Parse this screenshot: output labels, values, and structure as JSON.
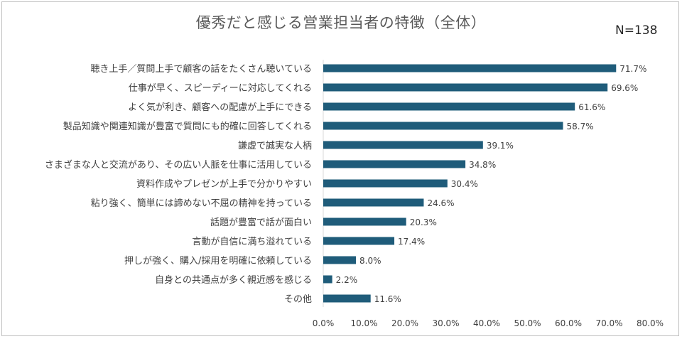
{
  "chart_data": {
    "type": "bar",
    "orientation": "horizontal",
    "title": "優秀だと感じる営業担当者の特徴（全体）",
    "note": "N=138",
    "categories": [
      "聴き上手／質問上手で顧客の話をたくさん聴いている",
      "仕事が早く、スピーディーに対応してくれる",
      "よく気が利き、顧客への配慮が上手にできる",
      "製品知識や関連知識が豊富で質問にも的確に回答してくれる",
      "謙虚で誠実な人柄",
      "さまざまな人と交流があり、その広い人脈を仕事に活用している",
      "資料作成やプレゼンが上手で分かりやすい",
      "粘り強く、簡単には諦めない不屈の精神を持っている",
      "話題が豊富で話が面白い",
      "言動が自信に満ち溢れている",
      "押しが強く、購入/採用を明確に依頼している",
      "自身との共通点が多く親近感を感じる",
      "その他"
    ],
    "values": [
      71.7,
      69.6,
      61.6,
      58.7,
      39.1,
      34.8,
      30.4,
      24.6,
      20.3,
      17.4,
      8.0,
      2.2,
      11.6
    ],
    "value_labels": [
      "71.7%",
      "69.6%",
      "61.6%",
      "58.7%",
      "39.1%",
      "34.8%",
      "30.4%",
      "24.6%",
      "20.3%",
      "17.4%",
      "8.0%",
      "2.2%",
      "11.6%"
    ],
    "xlim": [
      0,
      80
    ],
    "xticks": [
      "0.0%",
      "10.0%",
      "20.0%",
      "30.0%",
      "40.0%",
      "50.0%",
      "60.0%",
      "70.0%",
      "80.0%"
    ],
    "grid": false,
    "colors": {
      "bar": "#1f5c7a",
      "text": "#404040",
      "axis": "#d9d9d9"
    }
  }
}
